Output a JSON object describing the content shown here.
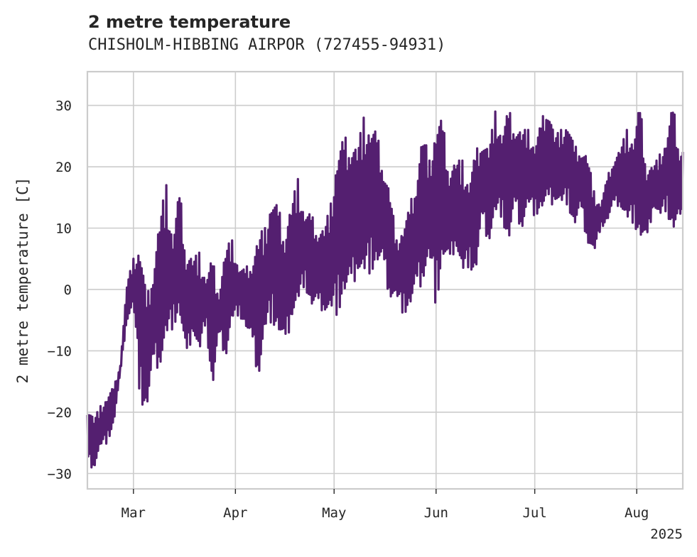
{
  "chart_data": {
    "type": "line",
    "title": "2 metre temperature",
    "subtitle": "CHISHOLM-HIBBING AIRPOR (727455-94931)",
    "ylabel": "2 metre temperature [C]",
    "xlabel": "",
    "x_range": [
      "2025-02-15",
      "2025-08-15"
    ],
    "ylim": [
      -32.5,
      35.5
    ],
    "x_ticks": [
      {
        "date": "2025-03-01",
        "label": "Mar"
      },
      {
        "date": "2025-04-01",
        "label": "Apr"
      },
      {
        "date": "2025-05-01",
        "label": "May"
      },
      {
        "date": "2025-06-01",
        "label": "Jun"
      },
      {
        "date": "2025-07-01",
        "label": "Jul"
      },
      {
        "date": "2025-08-01",
        "label": "Aug"
      }
    ],
    "x_year_label": "2025",
    "y_ticks": [
      -30,
      -20,
      -10,
      0,
      10,
      20,
      30
    ],
    "grid": true,
    "line_color": "#541f70",
    "series": [
      {
        "x": [
          "2025-02-15",
          "2025-02-17",
          "2025-02-19",
          "2025-02-21",
          "2025-02-23",
          "2025-02-25",
          "2025-02-27",
          "2025-03-01",
          "2025-03-03",
          "2025-03-05",
          "2025-03-07",
          "2025-03-09",
          "2025-03-11",
          "2025-03-13",
          "2025-03-15",
          "2025-03-17",
          "2025-03-19",
          "2025-03-21",
          "2025-03-23",
          "2025-03-25",
          "2025-03-27",
          "2025-03-29",
          "2025-03-31",
          "2025-04-02",
          "2025-04-04",
          "2025-04-06",
          "2025-04-08",
          "2025-04-10",
          "2025-04-12",
          "2025-04-14",
          "2025-04-16",
          "2025-04-18",
          "2025-04-20",
          "2025-04-22",
          "2025-04-24",
          "2025-04-26",
          "2025-04-28",
          "2025-04-30",
          "2025-05-02",
          "2025-05-04",
          "2025-05-06",
          "2025-05-08",
          "2025-05-10",
          "2025-05-12",
          "2025-05-14",
          "2025-05-16",
          "2025-05-18",
          "2025-05-20",
          "2025-05-22",
          "2025-05-24",
          "2025-05-26",
          "2025-05-28",
          "2025-05-30",
          "2025-06-01",
          "2025-06-03",
          "2025-06-05",
          "2025-06-07",
          "2025-06-09",
          "2025-06-11",
          "2025-06-13",
          "2025-06-15",
          "2025-06-17",
          "2025-06-19",
          "2025-06-21",
          "2025-06-23",
          "2025-06-25",
          "2025-06-27",
          "2025-06-29",
          "2025-07-01",
          "2025-07-03",
          "2025-07-05",
          "2025-07-07",
          "2025-07-09",
          "2025-07-11",
          "2025-07-13",
          "2025-07-15",
          "2025-07-17",
          "2025-07-19",
          "2025-07-21",
          "2025-07-23",
          "2025-07-25",
          "2025-07-27",
          "2025-07-29",
          "2025-07-31",
          "2025-08-02",
          "2025-08-04",
          "2025-08-06",
          "2025-08-08",
          "2025-08-10",
          "2025-08-12",
          "2025-08-14"
        ],
        "y_max": [
          -18,
          -21,
          -19,
          -17,
          -16,
          -12,
          1,
          5,
          9,
          -2,
          5,
          12,
          17,
          9,
          16,
          8,
          5,
          6,
          2,
          5,
          0,
          7,
          8,
          4,
          3,
          6,
          9,
          10,
          16,
          13,
          11,
          14,
          18,
          13,
          12,
          11,
          10,
          14,
          24,
          24,
          27,
          23,
          28,
          28,
          25,
          22,
          16,
          8,
          11,
          13,
          20,
          26,
          21,
          29,
          27,
          21,
          21,
          21,
          18,
          22,
          26,
          23,
          29,
          26,
          29,
          28,
          26,
          26,
          24,
          27,
          32,
          25,
          26,
          28,
          23,
          24,
          22,
          16,
          14,
          18,
          22,
          23,
          26,
          25,
          30,
          21,
          20,
          22,
          25,
          30,
          24
        ],
        "y_min": [
          -29,
          -29,
          -26,
          -25,
          -22,
          -14,
          -5,
          -3,
          -18,
          -20,
          -14,
          -12,
          -10,
          -6,
          -4,
          -14,
          -6,
          -12,
          -5,
          -17,
          -8,
          -11,
          -6,
          -4,
          -6,
          -10,
          -14,
          -8,
          -5,
          -7,
          -12,
          -4,
          -4,
          1,
          -3,
          -4,
          -3,
          -5,
          -4,
          -1,
          -3,
          4,
          0,
          3,
          4,
          2,
          -1,
          -2,
          -4,
          -3,
          -2,
          2,
          4,
          -3,
          5,
          2,
          8,
          1,
          4,
          2,
          10,
          8,
          11,
          12,
          7,
          12,
          10,
          13,
          12,
          13,
          12,
          15,
          13,
          14,
          10,
          12,
          8,
          5,
          10,
          11,
          13,
          14,
          10,
          11,
          8,
          6,
          14,
          11,
          13,
          9,
          10
        ]
      }
    ]
  }
}
